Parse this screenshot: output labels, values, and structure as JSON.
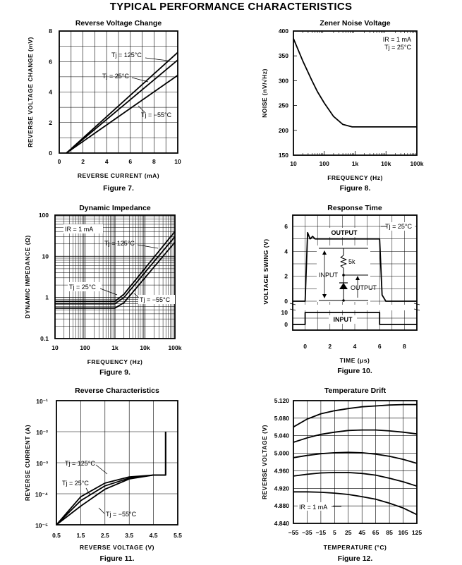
{
  "page_title": "TYPICAL PERFORMANCE CHARACTERISTICS",
  "chart_data": [
    {
      "id": "c1",
      "type": "line",
      "title": "Reverse Voltage Change",
      "figure": "Figure 7.",
      "xlabel": "REVERSE CURRENT (mA)",
      "ylabel": "REVERSE VOLTAGE CHANGE (mV)",
      "xlim": [
        0,
        10
      ],
      "ylim": [
        0,
        8
      ],
      "grid": true,
      "x_ticks": [
        "0",
        "2",
        "4",
        "6",
        "8",
        "10"
      ],
      "y_ticks": [
        "0",
        "2",
        "4",
        "6",
        "8"
      ],
      "series": [
        {
          "name": "Tj = 125°C",
          "x": [
            0.6,
            10
          ],
          "y": [
            0,
            6.6
          ]
        },
        {
          "name": "Tj = 25°C",
          "x": [
            0.6,
            10
          ],
          "y": [
            0,
            6.1
          ]
        },
        {
          "name": "Tj = −55°C",
          "x": [
            0.6,
            10
          ],
          "y": [
            0,
            5.1
          ]
        }
      ],
      "annotations": [
        "Tj = 125°C",
        "Tj = 25°C",
        "Tj = −55°C"
      ]
    },
    {
      "id": "c2",
      "type": "line",
      "title": "Zener Noise Voltage",
      "figure": "Figure 8.",
      "xlabel": "FREQUENCY (Hz)",
      "ylabel": "NOISE (nV/√Hz)",
      "x_scale": "log",
      "xlim": [
        10,
        100000
      ],
      "ylim": [
        150,
        400
      ],
      "grid": false,
      "x_ticks": [
        "10",
        "100",
        "1k",
        "10k",
        "100k"
      ],
      "y_ticks": [
        "150",
        "200",
        "250",
        "300",
        "350",
        "400"
      ],
      "series": [
        {
          "name": "",
          "x": [
            10,
            20,
            40,
            60,
            100,
            200,
            400,
            800,
            1000,
            2000,
            10000,
            100000
          ],
          "y": [
            385,
            340,
            300,
            278,
            255,
            228,
            212,
            207,
            207,
            207,
            207,
            207
          ]
        }
      ],
      "annotations": [
        "IR = 1 mA",
        "Tj = 25°C"
      ]
    },
    {
      "id": "c3",
      "type": "line",
      "title": "Dynamic Impedance",
      "figure": "Figure 9.",
      "xlabel": "FREQUENCY (Hz)",
      "ylabel": "DYNAMIC IMPEDANCE (Ω)",
      "x_scale": "log",
      "y_scale": "log",
      "xlim": [
        10,
        100000
      ],
      "ylim": [
        0.1,
        100
      ],
      "grid": true,
      "x_ticks": [
        "10",
        "100",
        "1k",
        "10k",
        "100k"
      ],
      "y_ticks": [
        "0.1",
        "1",
        "10",
        "100"
      ],
      "series": [
        {
          "name": "Tj = 125°C",
          "x": [
            10,
            1000,
            2000,
            100000
          ],
          "y": [
            0.8,
            0.8,
            1.2,
            40
          ]
        },
        {
          "name": "Tj = 25°C",
          "x": [
            10,
            1000,
            2000,
            100000
          ],
          "y": [
            0.7,
            0.7,
            1.0,
            30
          ]
        },
        {
          "name": "Tj = −55°C",
          "x": [
            10,
            1000,
            2000,
            100000
          ],
          "y": [
            0.55,
            0.55,
            0.75,
            22
          ]
        }
      ],
      "annotations": [
        "IR = 1 mA",
        "Tj = 125°C",
        "Tj = 25°C",
        "Tj = −55°C"
      ]
    },
    {
      "id": "c4",
      "type": "line",
      "title": "Response Time",
      "figure": "Figure 10.",
      "xlabel": "TIME (μs)",
      "ylabel": "VOLTAGE SWING (V)",
      "xlim": [
        -1,
        9
      ],
      "grid": true,
      "x_ticks": [
        "0",
        "2",
        "4",
        "6",
        "8"
      ],
      "y_ticks_output": [
        "0",
        "2",
        "4",
        "6"
      ],
      "y_ticks_input": [
        "0",
        "10"
      ],
      "series": [
        {
          "name": "OUTPUT",
          "x": [
            -1,
            0,
            0.2,
            0.4,
            0.6,
            0.8,
            1.2,
            6,
            6.2,
            6.5,
            9
          ],
          "y": [
            0,
            0,
            5.5,
            5.0,
            5.2,
            5.0,
            5.0,
            5.0,
            0.5,
            0,
            0
          ]
        },
        {
          "name": "INPUT",
          "x": [
            -1,
            0,
            0,
            6,
            6,
            9
          ],
          "y": [
            0,
            0,
            10,
            10,
            0,
            0
          ]
        }
      ],
      "annotations": [
        "Tj = 25°C",
        "OUTPUT",
        "INPUT",
        "5k",
        "INPUT",
        "OUTPUT"
      ]
    },
    {
      "id": "c5",
      "type": "line",
      "title": "Reverse Characteristics",
      "figure": "Figure 11.",
      "xlabel": "REVERSE VOLTAGE (V)",
      "ylabel": "REVERSE CURRENT (A)",
      "y_scale": "log",
      "xlim": [
        0.5,
        5.5
      ],
      "ylim": [
        1e-05,
        0.1
      ],
      "grid": true,
      "x_ticks": [
        "0.5",
        "1.5",
        "2.5",
        "3.5",
        "4.5",
        "5.5"
      ],
      "y_ticks": [
        "10⁻¹",
        "10⁻²",
        "10⁻³",
        "10⁻⁴",
        "10⁻⁵"
      ],
      "series": [
        {
          "name": "Tj = 125°C",
          "x": [
            0.5,
            1.5,
            2.5,
            3.5,
            4.5,
            5.0,
            5.0
          ],
          "y": [
            1e-05,
            8e-05,
            0.00022,
            0.00035,
            0.0004,
            0.0004,
            0.01
          ]
        },
        {
          "name": "Tj = 25°C",
          "x": [
            0.5,
            1.5,
            2.5,
            3.5,
            4.5,
            5.0,
            5.0
          ],
          "y": [
            1e-05,
            6e-05,
            0.00018,
            0.00032,
            0.0004,
            0.0004,
            0.01
          ]
        },
        {
          "name": "Tj = −55°C",
          "x": [
            0.5,
            1.5,
            2.5,
            3.5,
            4.5,
            5.0,
            5.0
          ],
          "y": [
            1e-05,
            4e-05,
            0.00014,
            0.0003,
            0.0004,
            0.0004,
            0.01
          ]
        }
      ],
      "annotations": [
        "Tj = 125°C",
        "Tj = 25°C",
        "Tj = −55°C"
      ]
    },
    {
      "id": "c6",
      "type": "line",
      "title": "Temperature Drift",
      "figure": "Figure 12.",
      "xlabel": "TEMPERATURE (°C)",
      "ylabel": "REVERSE VOLTAGE (V)",
      "xlim": [
        -55,
        125
      ],
      "ylim": [
        4.84,
        5.12
      ],
      "grid": true,
      "x_ticks": [
        "−55",
        "−35",
        "−15",
        "5",
        "25",
        "45",
        "65",
        "85",
        "105",
        "125"
      ],
      "y_ticks": [
        "5.120",
        "5.080",
        "5.040",
        "5.000",
        "4.960",
        "4.920",
        "4.880",
        "4.840"
      ],
      "series": [
        {
          "name": "",
          "x": [
            -55,
            -35,
            -15,
            5,
            25,
            45,
            65,
            85,
            105,
            125
          ],
          "y": [
            5.06,
            5.078,
            5.09,
            5.097,
            5.102,
            5.106,
            5.108,
            5.11,
            5.111,
            5.111
          ]
        },
        {
          "name": "",
          "x": [
            -55,
            -35,
            -15,
            5,
            25,
            45,
            65,
            85,
            105,
            125
          ],
          "y": [
            5.025,
            5.035,
            5.043,
            5.048,
            5.052,
            5.053,
            5.053,
            5.051,
            5.048,
            5.044
          ]
        },
        {
          "name": "",
          "x": [
            -55,
            -35,
            -15,
            5,
            25,
            45,
            65,
            85,
            105,
            125
          ],
          "y": [
            4.99,
            4.995,
            4.999,
            5.001,
            5.002,
            5.001,
            4.998,
            4.993,
            4.986,
            4.977
          ]
        },
        {
          "name": "",
          "x": [
            -55,
            -35,
            -15,
            5,
            25,
            45,
            65,
            85,
            105,
            125
          ],
          "y": [
            4.948,
            4.952,
            4.955,
            4.956,
            4.956,
            4.954,
            4.95,
            4.943,
            4.935,
            4.925
          ]
        },
        {
          "name": "",
          "x": [
            -55,
            -35,
            -15,
            5,
            25,
            45,
            65,
            85,
            105,
            125
          ],
          "y": [
            4.912,
            4.912,
            4.911,
            4.909,
            4.906,
            4.901,
            4.895,
            4.886,
            4.875,
            4.86
          ]
        }
      ],
      "annotations": [
        "IR = 1 mA"
      ]
    }
  ]
}
